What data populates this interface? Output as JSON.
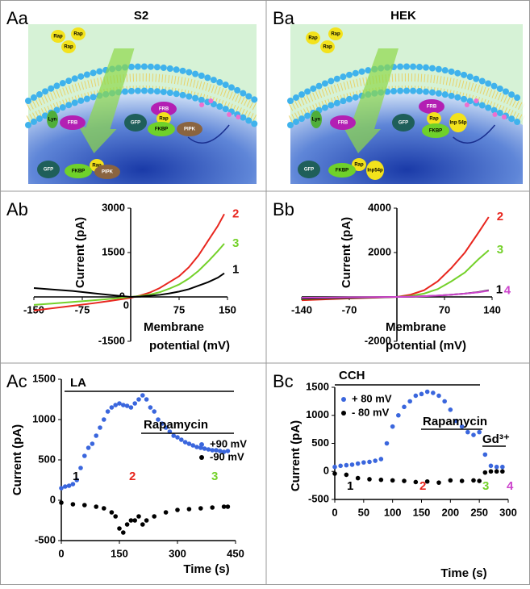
{
  "figure": {
    "panels": [
      "Aa",
      "Ba",
      "Ab",
      "Bb",
      "Ac",
      "Bc"
    ],
    "diagrams": [
      {
        "title": "S2",
        "labels": [
          "Rap",
          "Rap",
          "Rap",
          "Lyn",
          "FRB",
          "GFP",
          "FRB",
          "Rap",
          "FKBP",
          "PIPK",
          "Rap",
          "GFP",
          "FKBP",
          "PIPK"
        ]
      },
      {
        "title": "HEK",
        "labels": [
          "Rap",
          "Rap",
          "Rap",
          "Lyn",
          "FRB",
          "GFP",
          "FRB",
          "Rap",
          "FKBP",
          "Inp 54p",
          "Rap",
          "GFP",
          "FKBP",
          "Inp54p"
        ]
      }
    ]
  },
  "chart_data": [
    {
      "type": "line",
      "ylabel": "Current (pA)",
      "xlabel": [
        "Membrane",
        "potential (mV)"
      ],
      "x": [
        -150,
        -120,
        -90,
        -60,
        -30,
        0,
        15,
        30,
        45,
        60,
        75,
        90,
        105,
        120,
        135,
        145
      ],
      "series": [
        {
          "name": "2",
          "color": "#e8261e",
          "values": [
            -460,
            -380,
            -300,
            -220,
            -130,
            -30,
            50,
            150,
            300,
            500,
            700,
            1000,
            1400,
            1900,
            2400,
            2800
          ]
        },
        {
          "name": "3",
          "color": "#74d12a",
          "values": [
            -270,
            -220,
            -170,
            -120,
            -60,
            0,
            30,
            80,
            160,
            280,
            420,
            620,
            880,
            1200,
            1550,
            1800
          ]
        },
        {
          "name": "1",
          "color": "#000000",
          "values": [
            300,
            250,
            200,
            130,
            60,
            0,
            10,
            40,
            70,
            120,
            180,
            260,
            380,
            500,
            650,
            800
          ]
        }
      ],
      "xlim": [
        -150,
        150
      ],
      "xticks": [
        -150,
        -75,
        0,
        75,
        150
      ],
      "ylim": [
        -1500,
        3000
      ],
      "yticks": [
        -1500,
        0,
        1500,
        3000
      ]
    },
    {
      "type": "line",
      "ylabel": "Current (pA)",
      "xlabel": [
        "Membrane",
        "potential (mV)"
      ],
      "x": [
        -140,
        -105,
        -70,
        -35,
        0,
        20,
        40,
        60,
        80,
        100,
        120,
        135
      ],
      "series": [
        {
          "name": "2",
          "color": "#e8261e",
          "values": [
            -150,
            -110,
            -70,
            -35,
            0,
            100,
            300,
            700,
            1300,
            2000,
            2900,
            3600
          ]
        },
        {
          "name": "3",
          "color": "#74d12a",
          "values": [
            -100,
            -70,
            -50,
            -25,
            0,
            40,
            150,
            350,
            700,
            1100,
            1700,
            2100
          ]
        },
        {
          "name": "1",
          "color": "#000000",
          "values": [
            -80,
            -60,
            -40,
            -20,
            0,
            10,
            30,
            60,
            100,
            150,
            220,
            300
          ]
        },
        {
          "name": "4",
          "color": "#cc44cc",
          "values": [
            -40,
            -30,
            -20,
            -10,
            0,
            10,
            30,
            60,
            100,
            150,
            210,
            280
          ]
        }
      ],
      "xlim": [
        -140,
        140
      ],
      "xticks": [
        -140,
        -70,
        70,
        140
      ],
      "ylim": [
        -2000,
        4000
      ],
      "yticks": [
        -2000,
        2000,
        4000
      ]
    },
    {
      "type": "scatter",
      "ylabel": "Current (pA)",
      "xlabel": "Time (s)",
      "series": [
        {
          "name": "+90 mV",
          "color": "#3a66dd",
          "x": [
            0,
            10,
            20,
            30,
            40,
            50,
            60,
            70,
            80,
            90,
            100,
            110,
            120,
            130,
            140,
            150,
            160,
            170,
            180,
            190,
            200,
            210,
            220,
            230,
            240,
            250,
            260,
            270,
            280,
            290,
            300,
            310,
            320,
            330,
            340,
            350,
            360,
            370,
            380,
            390,
            400,
            410,
            420,
            430
          ],
          "values": [
            150,
            170,
            180,
            200,
            250,
            400,
            550,
            650,
            700,
            800,
            900,
            1000,
            1100,
            1150,
            1180,
            1200,
            1180,
            1170,
            1150,
            1200,
            1250,
            1300,
            1250,
            1150,
            1100,
            1000,
            950,
            900,
            850,
            800,
            780,
            750,
            720,
            700,
            680,
            660,
            650,
            640,
            630,
            620,
            620,
            610,
            600,
            610
          ]
        },
        {
          "name": "-90 mV",
          "color": "#000000",
          "x": [
            0,
            30,
            60,
            90,
            110,
            130,
            140,
            150,
            160,
            170,
            180,
            190,
            200,
            210,
            220,
            240,
            270,
            300,
            330,
            360,
            390,
            420,
            430
          ],
          "values": [
            -30,
            -50,
            -60,
            -80,
            -100,
            -150,
            -200,
            -350,
            -400,
            -300,
            -250,
            -250,
            -200,
            -300,
            -250,
            -200,
            -150,
            -120,
            -110,
            -100,
            -90,
            -80,
            -80
          ]
        }
      ],
      "annotations": [
        {
          "text": "LA",
          "color": "#000000"
        },
        {
          "text": "Rapamycin",
          "color": "#000000"
        },
        {
          "text": "1",
          "color": "#000000"
        },
        {
          "text": "2",
          "color": "#e8261e"
        },
        {
          "text": "3",
          "color": "#74d12a"
        }
      ],
      "xlim": [
        0,
        450
      ],
      "xticks": [
        0,
        150,
        300,
        450
      ],
      "ylim": [
        -500,
        1500
      ],
      "yticks": [
        -500,
        0,
        500,
        1000,
        1500
      ]
    },
    {
      "type": "scatter",
      "ylabel": "Current (pA)",
      "xlabel": "Time (s)",
      "series": [
        {
          "name": "+ 80 mV",
          "color": "#3a66dd",
          "x": [
            0,
            10,
            20,
            30,
            40,
            50,
            60,
            70,
            80,
            90,
            100,
            110,
            120,
            130,
            140,
            150,
            160,
            170,
            180,
            190,
            200,
            210,
            220,
            230,
            240,
            250,
            260,
            270,
            280,
            290
          ],
          "values": [
            80,
            100,
            110,
            120,
            140,
            160,
            170,
            190,
            220,
            500,
            800,
            1000,
            1150,
            1250,
            1350,
            1380,
            1420,
            1400,
            1350,
            1250,
            1100,
            900,
            800,
            700,
            650,
            700,
            300,
            100,
            80,
            80
          ]
        },
        {
          "name": "- 80 mV",
          "color": "#000000",
          "x": [
            0,
            20,
            40,
            60,
            80,
            100,
            120,
            140,
            160,
            180,
            200,
            220,
            240,
            250,
            260,
            270,
            280,
            290
          ],
          "values": [
            -40,
            -60,
            -120,
            -140,
            -150,
            -160,
            -170,
            -190,
            -180,
            -200,
            -160,
            -170,
            -160,
            -170,
            -20,
            0,
            0,
            0
          ]
        }
      ],
      "annotations": [
        {
          "text": "CCH",
          "color": "#000000"
        },
        {
          "text": "Rapamycin",
          "color": "#000000"
        },
        {
          "text": "Gd³⁺",
          "color": "#000000"
        },
        {
          "text": "1",
          "color": "#000000"
        },
        {
          "text": "2",
          "color": "#e8261e"
        },
        {
          "text": "3",
          "color": "#74d12a"
        },
        {
          "text": "4",
          "color": "#cc44cc"
        }
      ],
      "xlim": [
        0,
        300
      ],
      "xticks": [
        0,
        50,
        100,
        150,
        200,
        250,
        300
      ],
      "ylim": [
        -500,
        1500
      ],
      "yticks": [
        -500,
        0,
        500,
        1000,
        1500
      ]
    }
  ]
}
